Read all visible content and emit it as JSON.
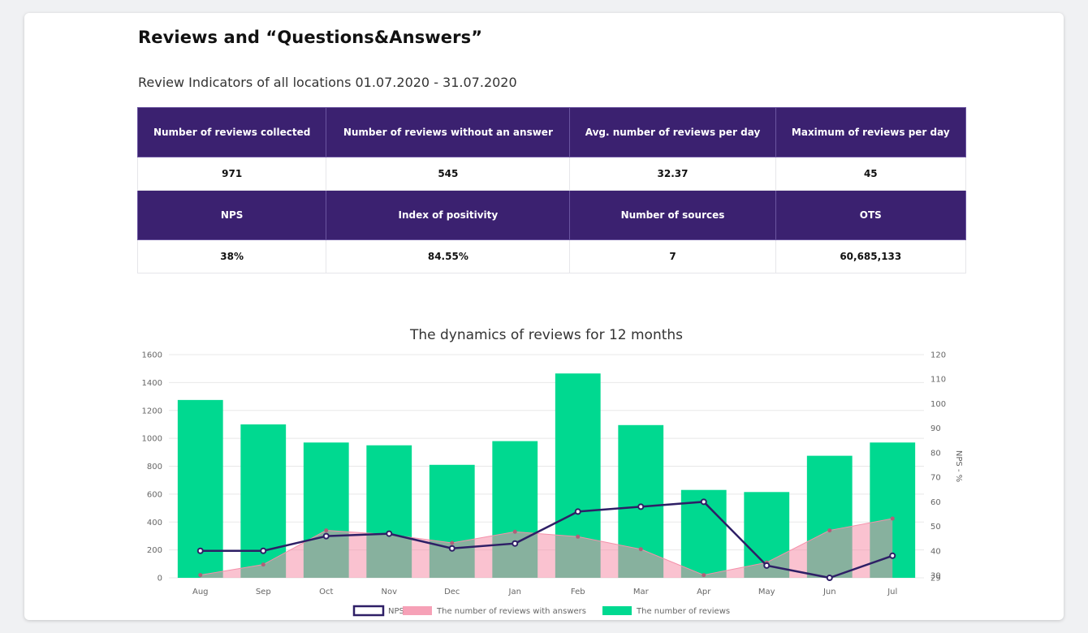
{
  "header": {
    "title": "Reviews and “Questions&Answers”",
    "subtitle": "Review Indicators of all locations 01.07.2020 - 31.07.2020"
  },
  "indicators": {
    "row1_headers": [
      "Number of reviews collected",
      "Number of reviews without an answer",
      "Avg. number of reviews per day",
      "Maximum of reviews per day"
    ],
    "row1_values": [
      "971",
      "545",
      "32.37",
      "45"
    ],
    "row2_headers": [
      "NPS",
      "Index of positivity",
      "Number of sources",
      "OTS"
    ],
    "row2_values": [
      "38%",
      "84.55%",
      "7",
      "60,685,133"
    ]
  },
  "colors": {
    "header_bg": "#3b2170",
    "bars": "#00d990",
    "area": "#f590aa",
    "nps_line": "#2e1f66",
    "nps_marker_fill": "#ffffff",
    "answers_marker": "#b0607a"
  },
  "chart_data": {
    "type": "bar",
    "title": "The dynamics of reviews for 12 months",
    "categories": [
      "Aug",
      "Sep",
      "Oct",
      "Nov",
      "Dec",
      "Jan",
      "Feb",
      "Mar",
      "Apr",
      "May",
      "Jun",
      "Jul"
    ],
    "left_axis": {
      "ylim": [
        0,
        1600
      ],
      "ticks": [
        0,
        200,
        400,
        600,
        800,
        1000,
        1200,
        1400,
        1600
      ]
    },
    "right_axis": {
      "label": "NPS - %",
      "ylim": [
        29,
        120
      ],
      "ticks": [
        29,
        30,
        40,
        50,
        60,
        70,
        80,
        90,
        100,
        110,
        120
      ]
    },
    "grid": true,
    "legend_position": "bottom",
    "series": [
      {
        "name": "The number of reviews",
        "type": "bar",
        "axis": "left",
        "values": [
          1275,
          1100,
          970,
          950,
          810,
          980,
          1465,
          1095,
          630,
          615,
          875,
          970
        ]
      },
      {
        "name": "The number of reviews with answers",
        "type": "area",
        "axis": "left",
        "values": [
          20,
          95,
          340,
          310,
          250,
          330,
          295,
          205,
          20,
          110,
          340,
          425
        ]
      },
      {
        "name": "NPS",
        "type": "line",
        "axis": "right",
        "values": [
          40,
          40,
          46,
          47,
          41,
          43,
          56,
          58,
          60,
          34,
          29,
          38
        ]
      }
    ]
  }
}
